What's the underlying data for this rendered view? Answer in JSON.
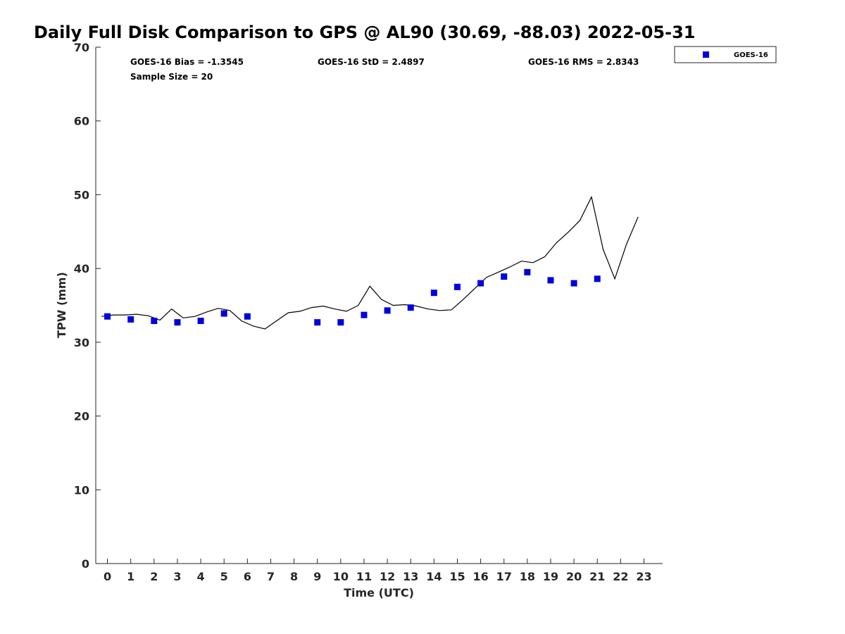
{
  "chart_data": {
    "type": "scatter",
    "title": "Daily Full Disk Comparison to GPS @ AL90 (30.69, -88.03) 2022-05-31",
    "xlabel": "Time (UTC)",
    "ylabel": "TPW (mm)",
    "xlim": [
      -0.5,
      23.8
    ],
    "ylim": [
      0,
      70
    ],
    "x_ticks": [
      0,
      1,
      2,
      3,
      4,
      5,
      6,
      7,
      8,
      9,
      10,
      11,
      12,
      13,
      14,
      15,
      16,
      17,
      18,
      19,
      20,
      21,
      22,
      23
    ],
    "y_ticks": [
      0,
      10,
      20,
      30,
      40,
      50,
      60,
      70
    ],
    "grid": false,
    "legend_position": "top-right, outside plot",
    "stats": {
      "bias": "GOES-16 Bias = -1.3545",
      "std": "GOES-16 StD = 2.4897",
      "rms": "GOES-16 RMS = 2.8343",
      "sample_size": "Sample Size = 20"
    },
    "series": [
      {
        "name": "GOES-16",
        "kind": "scatter",
        "marker": "square",
        "color": "#0000dd",
        "x": [
          0,
          1,
          2,
          3,
          4,
          5,
          6,
          9,
          10,
          11,
          12,
          13,
          14,
          15,
          16,
          17,
          18,
          19,
          20,
          21
        ],
        "y": [
          33.5,
          33.1,
          32.9,
          32.7,
          32.9,
          33.9,
          33.5,
          32.7,
          32.7,
          33.7,
          34.3,
          34.7,
          36.7,
          37.5,
          38.0,
          38.9,
          39.5,
          38.4,
          38.0,
          38.6
        ]
      },
      {
        "kind": "line",
        "color": "#000000",
        "x": [
          -0.25,
          0.25,
          0.75,
          1.25,
          1.75,
          2.25,
          2.75,
          3.25,
          3.75,
          4.25,
          4.75,
          5.25,
          5.75,
          6.25,
          6.75,
          7.25,
          7.75,
          8.25,
          8.75,
          9.25,
          9.75,
          10.25,
          10.75,
          11.25,
          11.75,
          12.25,
          12.75,
          13.25,
          13.75,
          14.25,
          14.75,
          15.25,
          15.75,
          16.25,
          16.75,
          17.25,
          17.75,
          18.25,
          18.75,
          19.25,
          19.75,
          20.25,
          20.75,
          21.25,
          21.75,
          22.25,
          22.75
        ],
        "y": [
          33.5,
          33.7,
          33.7,
          33.8,
          33.6,
          33.0,
          34.5,
          33.3,
          33.5,
          34.1,
          34.6,
          34.3,
          32.9,
          32.2,
          31.8,
          32.9,
          34.0,
          34.2,
          34.7,
          34.9,
          34.5,
          34.2,
          35.0,
          37.6,
          35.8,
          35.0,
          35.1,
          34.9,
          34.5,
          34.3,
          34.4,
          35.8,
          37.3,
          38.8,
          39.5,
          40.2,
          41.0,
          40.8,
          41.6,
          43.5,
          44.9,
          46.5,
          49.7,
          42.6,
          38.6,
          43.3,
          47.0
        ]
      }
    ]
  }
}
